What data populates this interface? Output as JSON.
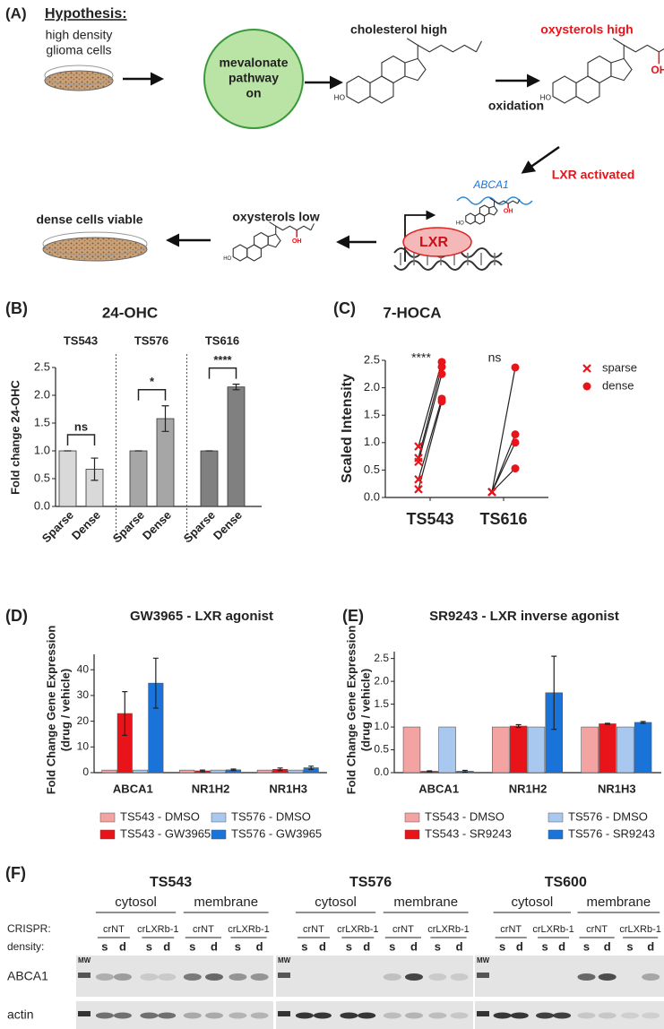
{
  "panel_a": {
    "label": "(A)",
    "title": "Hypothesis:",
    "cells": [
      "high density",
      "glioma cells"
    ],
    "pathway": [
      "mevalonate",
      "pathway",
      "on"
    ],
    "cholesterol": "cholesterol high",
    "oxidation": "oxidation",
    "oxysterols_high": "oxysterols high",
    "hydroxyl": "OH",
    "sterol_ho": "HO",
    "lxr_activated": "LXR activated",
    "gene": "ABCA1",
    "receptor": "LXR",
    "oxysterols_low": "oxysterols low",
    "viable": "dense cells viable"
  },
  "chart_data": [
    {
      "panel": "(B)",
      "type": "bar",
      "title": "24-OHC",
      "ylabel": "Fold change 24-OHC",
      "ylim": [
        0,
        2.5
      ],
      "yticks": [
        {
          "value": 0,
          "label": "0.0"
        },
        {
          "value": 0.5,
          "label": "0.5"
        },
        {
          "value": 1,
          "label": "1.0"
        },
        {
          "value": 1.5,
          "label": "1.5"
        },
        {
          "value": 2,
          "label": "2.0"
        },
        {
          "value": 2.5,
          "label": "2.5"
        }
      ],
      "groups": [
        {
          "name": "TS543",
          "categories": [
            "Sparse",
            "Dense"
          ],
          "values": [
            1,
            0.67
          ],
          "errors": [
            0,
            0.2
          ],
          "color": "#d9d9d9",
          "significance": "ns"
        },
        {
          "name": "TS576",
          "categories": [
            "Sparse",
            "Dense"
          ],
          "values": [
            1,
            1.58
          ],
          "errors": [
            0,
            0.23
          ],
          "color": "#a6a6a6",
          "significance": "*"
        },
        {
          "name": "TS616",
          "categories": [
            "Sparse",
            "Dense"
          ],
          "values": [
            1,
            2.15
          ],
          "errors": [
            0,
            0.05
          ],
          "color": "#808080",
          "significance": "****"
        }
      ]
    },
    {
      "panel": "(C)",
      "type": "dot",
      "title": "7-HOCA",
      "ylabel": "Scaled Intensity",
      "ylim": [
        0,
        2.5
      ],
      "yticks": [
        {
          "value": 0,
          "label": "0.0"
        },
        {
          "value": 0.5,
          "label": "0.5"
        },
        {
          "value": 1,
          "label": "1.0"
        },
        {
          "value": 1.5,
          "label": "1.5"
        },
        {
          "value": 2,
          "label": "2.0"
        },
        {
          "value": 2.5,
          "label": "2.5"
        }
      ],
      "categories": [
        "TS543",
        "TS616"
      ],
      "significance": [
        "****",
        "ns"
      ],
      "legend": "right",
      "series": [
        {
          "name": "sparse",
          "color": "#e8141a",
          "marker": "x",
          "values": [
            [
              0.93,
              0.72,
              0.65,
              0.33,
              0.15
            ],
            [
              0.1,
              0.1,
              0.1,
              0.1
            ]
          ]
        },
        {
          "name": "dense",
          "color": "#e8141a",
          "marker": "circle",
          "values": [
            [
              2.47,
              2.38,
              2.25,
              1.8,
              1.75
            ],
            [
              2.37,
              1.15,
              1.0,
              0.53
            ]
          ]
        }
      ]
    },
    {
      "panel": "(D)",
      "type": "grouped_bar",
      "title": "GW3965 - LXR agonist",
      "ylabel": [
        "Fold Change Gene Expression",
        "(drug / vehicle)"
      ],
      "ylim": [
        0,
        46
      ],
      "yticks": [
        0,
        10,
        20,
        30,
        40
      ],
      "categories": [
        "ABCA1",
        "NR1H2",
        "NR1H3"
      ],
      "series": [
        {
          "name": "TS543 - DMSO",
          "color": "#f4a3a3",
          "values": [
            1,
            1,
            1
          ]
        },
        {
          "name": "TS543 - GW3965",
          "color": "#e8141a",
          "values": [
            23,
            0.7,
            1.3
          ],
          "errors": [
            8.5,
            0.3,
            0.5
          ]
        },
        {
          "name": "TS576 - DMSO",
          "color": "#a8c8f0",
          "values": [
            1,
            1,
            1
          ]
        },
        {
          "name": "TS576 - GW3965",
          "color": "#1a73d9",
          "values": [
            34.8,
            1.1,
            1.9
          ],
          "errors": [
            9.7,
            0.3,
            0.6
          ]
        }
      ]
    },
    {
      "panel": "(E)",
      "type": "grouped_bar",
      "title": "SR9243 - LXR inverse agonist",
      "ylabel": [
        "Fold Change Gene Expression",
        "(drug / vehicle)"
      ],
      "ylim": [
        0,
        2.65
      ],
      "yticks": [
        {
          "value": 0,
          "label": "0.0"
        },
        {
          "value": 0.5,
          "label": "0.5"
        },
        {
          "value": 1,
          "label": "1.0"
        },
        {
          "value": 1.5,
          "label": "1.5"
        },
        {
          "value": 2,
          "label": "2.0"
        },
        {
          "value": 2.5,
          "label": "2.5"
        }
      ],
      "categories": [
        "ABCA1",
        "NR1H2",
        "NR1H3"
      ],
      "series": [
        {
          "name": "TS543 - DMSO",
          "color": "#f4a3a3",
          "values": [
            1,
            1,
            1
          ]
        },
        {
          "name": "TS543 - SR9243",
          "color": "#e8141a",
          "values": [
            0.03,
            1.02,
            1.07
          ],
          "errors": [
            0.01,
            0.03,
            0.01
          ]
        },
        {
          "name": "TS576 - DMSO",
          "color": "#a8c8f0",
          "values": [
            1,
            1,
            1
          ]
        },
        {
          "name": "TS576 - SR9243",
          "color": "#1a73d9",
          "values": [
            0.03,
            1.75,
            1.1
          ],
          "errors": [
            0.02,
            0.8,
            0.02
          ]
        }
      ]
    }
  ],
  "panel_f": {
    "label": "(F)",
    "crispr_label": "CRISPR:",
    "density_label": "density:",
    "mw": "MW",
    "rows": [
      "ABCA1",
      "actin"
    ],
    "lines": [
      {
        "name": "TS543",
        "fractions": [
          "cytosol",
          "membrane"
        ],
        "guides": [
          "crNT",
          "crLXRb-1"
        ],
        "densities": [
          "s",
          "d"
        ]
      },
      {
        "name": "TS576",
        "fractions": [
          "cytosol",
          "membrane"
        ],
        "guides": [
          "crNT",
          "crLXRb-1"
        ],
        "densities": [
          "s",
          "d"
        ]
      },
      {
        "name": "TS600",
        "fractions": [
          "cytosol",
          "membrane"
        ],
        "guides": [
          "crNT",
          "crLXRb-1"
        ],
        "densities": [
          "s",
          "d"
        ]
      }
    ]
  }
}
